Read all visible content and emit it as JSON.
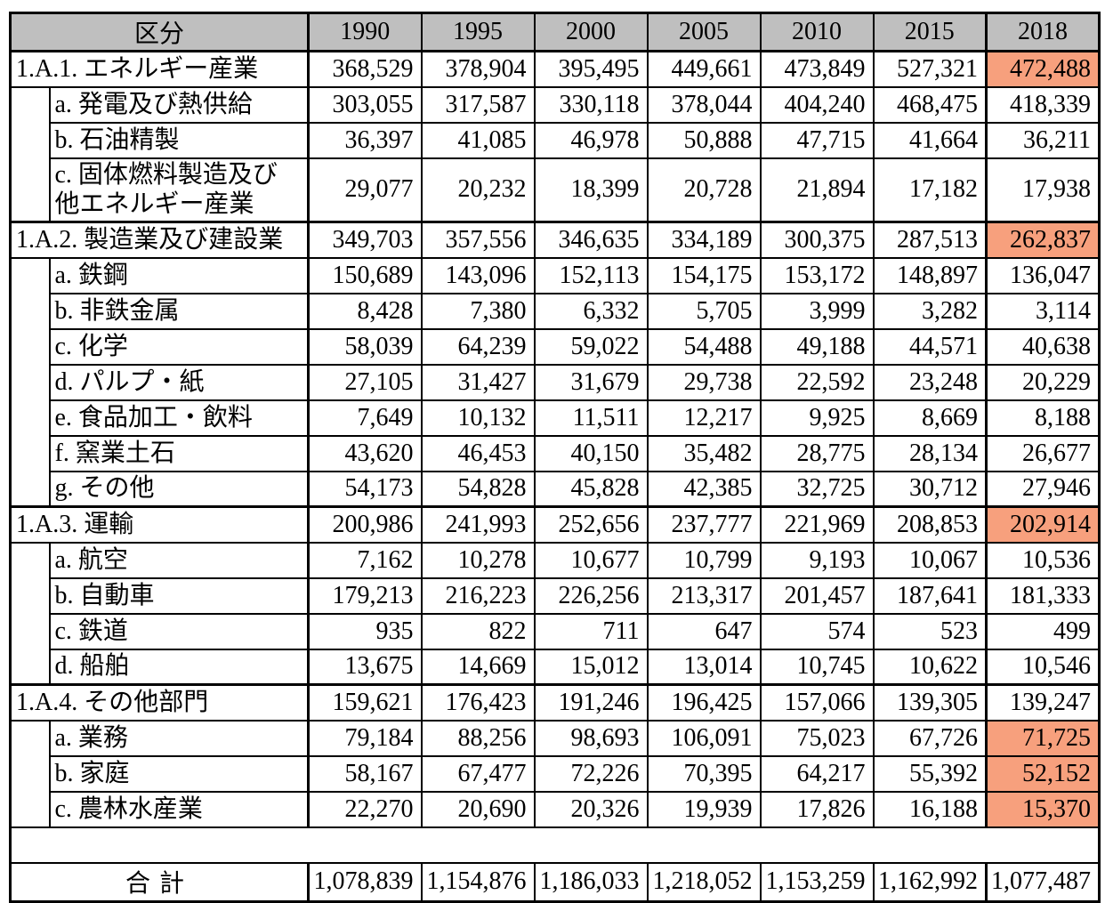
{
  "page": {
    "background": "#FFFFFF"
  },
  "table": {
    "colors": {
      "header_bg": "#BFBFBF",
      "highlight": "#F7A07D",
      "border": "#000000"
    },
    "header": {
      "category_label": "区分",
      "years": [
        "1990",
        "1995",
        "2000",
        "2005",
        "2010",
        "2015",
        "2018"
      ]
    },
    "sections": [
      {
        "label": "1.A.1. エネルギー産業",
        "values": [
          "368,529",
          "378,904",
          "395,495",
          "449,661",
          "473,849",
          "527,321",
          "472,488"
        ],
        "highlight_2018": true,
        "subrows": [
          {
            "label": "a. 発電及び熱供給",
            "values": [
              "303,055",
              "317,587",
              "330,118",
              "378,044",
              "404,240",
              "468,475",
              "418,339"
            ],
            "highlight_2018": false
          },
          {
            "label": "b. 石油精製",
            "values": [
              "36,397",
              "41,085",
              "46,978",
              "50,888",
              "47,715",
              "41,664",
              "36,211"
            ],
            "highlight_2018": false
          },
          {
            "label": "c. 固体燃料製造及び\n他エネルギー産業",
            "values": [
              "29,077",
              "20,232",
              "18,399",
              "20,728",
              "21,894",
              "17,182",
              "17,938"
            ],
            "highlight_2018": false
          }
        ]
      },
      {
        "label": "1.A.2. 製造業及び建設業",
        "values": [
          "349,703",
          "357,556",
          "346,635",
          "334,189",
          "300,375",
          "287,513",
          "262,837"
        ],
        "highlight_2018": true,
        "subrows": [
          {
            "label": "a. 鉄鋼",
            "values": [
              "150,689",
              "143,096",
              "152,113",
              "154,175",
              "153,172",
              "148,897",
              "136,047"
            ],
            "highlight_2018": false
          },
          {
            "label": "b. 非鉄金属",
            "values": [
              "8,428",
              "7,380",
              "6,332",
              "5,705",
              "3,999",
              "3,282",
              "3,114"
            ],
            "highlight_2018": false
          },
          {
            "label": "c. 化学",
            "values": [
              "58,039",
              "64,239",
              "59,022",
              "54,488",
              "49,188",
              "44,571",
              "40,638"
            ],
            "highlight_2018": false
          },
          {
            "label": "d. パルプ・紙",
            "values": [
              "27,105",
              "31,427",
              "31,679",
              "29,738",
              "22,592",
              "23,248",
              "20,229"
            ],
            "highlight_2018": false
          },
          {
            "label": "e. 食品加工・飲料",
            "values": [
              "7,649",
              "10,132",
              "11,511",
              "12,217",
              "9,925",
              "8,669",
              "8,188"
            ],
            "highlight_2018": false
          },
          {
            "label": "f. 窯業土石",
            "values": [
              "43,620",
              "46,453",
              "40,150",
              "35,482",
              "28,775",
              "28,134",
              "26,677"
            ],
            "highlight_2018": false
          },
          {
            "label": "g. その他",
            "values": [
              "54,173",
              "54,828",
              "45,828",
              "42,385",
              "32,725",
              "30,712",
              "27,946"
            ],
            "highlight_2018": false
          }
        ]
      },
      {
        "label": "1.A.3. 運輸",
        "values": [
          "200,986",
          "241,993",
          "252,656",
          "237,777",
          "221,969",
          "208,853",
          "202,914"
        ],
        "highlight_2018": true,
        "subrows": [
          {
            "label": "a. 航空",
            "values": [
              "7,162",
              "10,278",
              "10,677",
              "10,799",
              "9,193",
              "10,067",
              "10,536"
            ],
            "highlight_2018": false
          },
          {
            "label": "b. 自動車",
            "values": [
              "179,213",
              "216,223",
              "226,256",
              "213,317",
              "201,457",
              "187,641",
              "181,333"
            ],
            "highlight_2018": false
          },
          {
            "label": "c. 鉄道",
            "values": [
              "935",
              "822",
              "711",
              "647",
              "574",
              "523",
              "499"
            ],
            "highlight_2018": false
          },
          {
            "label": "d. 船舶",
            "values": [
              "13,675",
              "14,669",
              "15,012",
              "13,014",
              "10,745",
              "10,622",
              "10,546"
            ],
            "highlight_2018": false
          }
        ]
      },
      {
        "label": "1.A.4. その他部門",
        "values": [
          "159,621",
          "176,423",
          "191,246",
          "196,425",
          "157,066",
          "139,305",
          "139,247"
        ],
        "highlight_2018": false,
        "subrows": [
          {
            "label": "a. 業務",
            "values": [
              "79,184",
              "88,256",
              "98,693",
              "106,091",
              "75,023",
              "67,726",
              "71,725"
            ],
            "highlight_2018": true
          },
          {
            "label": "b. 家庭",
            "values": [
              "58,167",
              "67,477",
              "72,226",
              "70,395",
              "64,217",
              "55,392",
              "52,152"
            ],
            "highlight_2018": true
          },
          {
            "label": "c. 農林水産業",
            "values": [
              "22,270",
              "20,690",
              "20,326",
              "19,939",
              "17,826",
              "16,188",
              "15,370"
            ],
            "highlight_2018": true
          }
        ]
      }
    ],
    "total": {
      "label": "合計",
      "values": [
        "1,078,839",
        "1,154,876",
        "1,186,033",
        "1,218,052",
        "1,153,259",
        "1,162,992",
        "1,077,487"
      ]
    }
  }
}
